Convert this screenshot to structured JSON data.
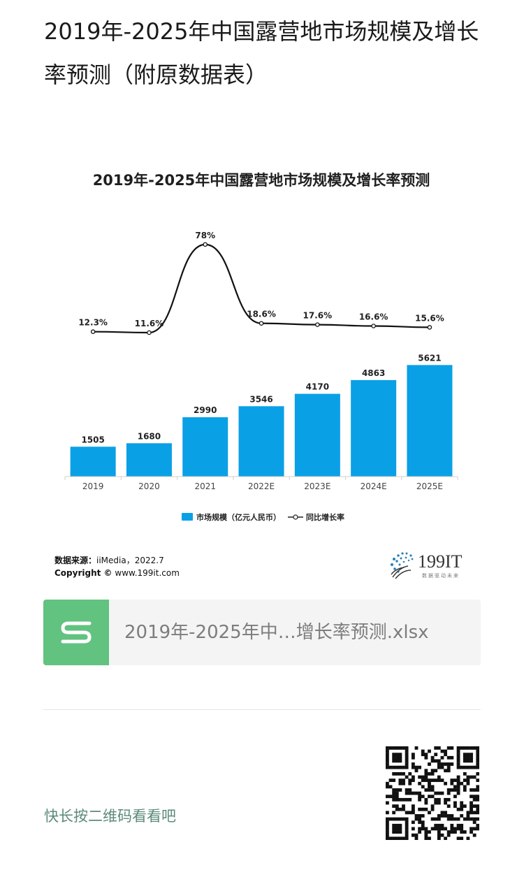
{
  "page": {
    "title": "2019年-2025年中国露营地市场规模及增长率预测（附原数据表）"
  },
  "chart": {
    "source_label": "数据来源：",
    "source_text": "iiMedia，2022.7",
    "copyright_label": "Copyright ©",
    "copyright_text": "www.199it.com",
    "logo_text": "199IT",
    "logo_subtext": "数据驱动未来"
  },
  "chart_data": {
    "type": "bar",
    "title": "2019年-2025年中国露营地市场规模及增长率预测",
    "categories": [
      "2019",
      "2020",
      "2021",
      "2022E",
      "2023E",
      "2024E",
      "2025E"
    ],
    "series": [
      {
        "name": "市场规模（亿元人民币）",
        "type": "bar",
        "values": [
          1505,
          1680,
          2990,
          3546,
          4170,
          4863,
          5621
        ],
        "color": "#0aa0e6"
      },
      {
        "name": "同比增长率",
        "type": "line",
        "values": [
          12.3,
          11.6,
          78,
          18.6,
          17.6,
          16.6,
          15.6
        ],
        "labels": [
          "12.3%",
          "11.6%",
          "78%",
          "18.6%",
          "17.6%",
          "16.6%",
          "15.6%"
        ],
        "color": "#111111"
      }
    ],
    "legend_position": "bottom",
    "grid": false
  },
  "attachment": {
    "file_name": "2019年-2025年中…增长率预测.xlsx",
    "icon": "spreadsheet-s-icon",
    "icon_color": "#62c27f"
  },
  "footer": {
    "prompt": "快长按二维码看看吧",
    "qr_icon": "qr-code-icon"
  }
}
